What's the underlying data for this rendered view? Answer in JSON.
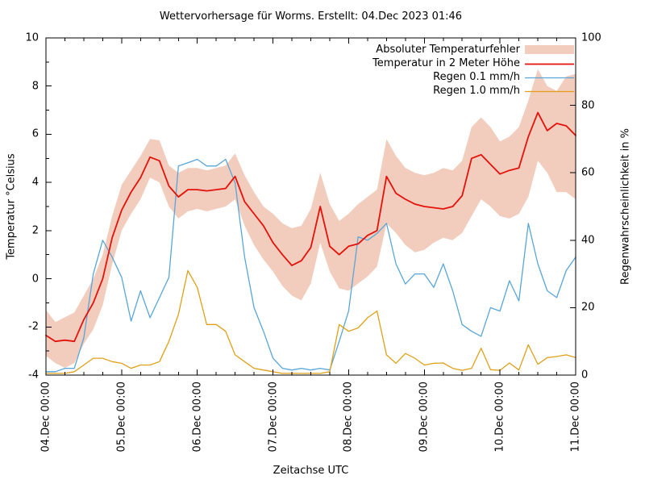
{
  "chart_data": {
    "type": "line",
    "title": "Wettervorhersage für Worms. Erstellt: 04.Dec 2023 01:46",
    "xlabel": "Zeitachse UTC",
    "ylabel_left": "Temperatur °Celsius",
    "ylabel_right": "Regenwahrscheinlichkeit in %",
    "grid": false,
    "legend_position": "top-right-inside",
    "x_tick_labels": [
      "04.Dec 00:00",
      "05.Dec 00:00",
      "06.Dec 00:00",
      "07.Dec 00:00",
      "08.Dec 00:00",
      "09.Dec 00:00",
      "10.Dec 00:00",
      "11.Dec 00:00"
    ],
    "x_minor_ticks_hours": 6,
    "step_hours": 3,
    "y_left": {
      "min": -4,
      "max": 10,
      "tick_step": 2,
      "minor_step": 1,
      "ticks": [
        10,
        8,
        6,
        4,
        2,
        0,
        -2,
        -4
      ]
    },
    "y_right": {
      "min": 0,
      "max": 100,
      "tick_step": 20,
      "ticks": [
        100,
        80,
        60,
        40,
        20,
        0
      ]
    },
    "legend": [
      {
        "label": "Absoluter Temperaturfehler",
        "series_key": "band",
        "swatch": "band"
      },
      {
        "label": "Temperatur in 2 Meter Höhe",
        "series_key": "temperature",
        "swatch": "line"
      },
      {
        "label": "Regen 0.1 mm/h",
        "series_key": "rain01",
        "swatch": "line"
      },
      {
        "label": "Regen 1.0 mm/h",
        "series_key": "rain10",
        "swatch": "line"
      }
    ],
    "series": {
      "band": {
        "name": "Absoluter Temperaturfehler",
        "axis": "left",
        "color": "#f2ccbc",
        "lower": [
          -3.2,
          -3.5,
          -3.7,
          -3.5,
          -2.7,
          -2.1,
          -1.1,
          0.6,
          2.0,
          2.7,
          3.3,
          4.2,
          4.0,
          3.0,
          2.5,
          2.8,
          2.9,
          2.8,
          2.9,
          3.0,
          3.3,
          2.2,
          1.4,
          0.8,
          0.3,
          -0.3,
          -0.7,
          -0.9,
          -0.2,
          1.5,
          0.3,
          -0.4,
          -0.5,
          -0.2,
          0.1,
          0.5,
          2.3,
          1.9,
          1.4,
          1.1,
          1.2,
          1.5,
          1.7,
          1.6,
          1.9,
          2.6,
          3.3,
          3.0,
          2.6,
          2.5,
          2.7,
          3.4,
          4.9,
          4.4,
          3.6,
          3.6,
          3.3
        ],
        "upper": [
          -1.3,
          -1.8,
          -1.6,
          -1.4,
          -0.7,
          0.0,
          1.0,
          2.6,
          3.9,
          4.5,
          5.1,
          5.8,
          5.75,
          4.7,
          4.4,
          4.6,
          4.6,
          4.5,
          4.6,
          4.7,
          5.2,
          4.3,
          3.6,
          3.0,
          2.7,
          2.3,
          2.1,
          2.2,
          2.9,
          4.4,
          3.1,
          2.4,
          2.7,
          3.1,
          3.4,
          3.7,
          5.8,
          5.1,
          4.6,
          4.4,
          4.3,
          4.4,
          4.6,
          4.5,
          4.9,
          6.3,
          6.7,
          6.3,
          5.7,
          5.9,
          6.3,
          7.4,
          8.7,
          8.0,
          7.8,
          8.4,
          8.5
        ]
      },
      "temperature": {
        "name": "Temperatur in 2 Meter Höhe",
        "axis": "left",
        "color": "#e3120b",
        "values": [
          -2.35,
          -2.6,
          -2.55,
          -2.6,
          -1.7,
          -1.0,
          0.0,
          1.7,
          2.85,
          3.6,
          4.2,
          5.05,
          4.9,
          3.85,
          3.4,
          3.7,
          3.7,
          3.65,
          3.7,
          3.75,
          4.25,
          3.2,
          2.7,
          2.2,
          1.5,
          1.0,
          0.55,
          0.75,
          1.3,
          3.0,
          1.35,
          1.0,
          1.35,
          1.45,
          1.8,
          2.0,
          4.25,
          3.55,
          3.3,
          3.1,
          3.0,
          2.95,
          2.9,
          3.0,
          3.45,
          5.0,
          5.15,
          4.75,
          4.35,
          4.5,
          4.6,
          5.9,
          6.9,
          6.15,
          6.45,
          6.35,
          5.95
        ]
      },
      "rain01": {
        "name": "Regen 0.1 mm/h",
        "axis": "right",
        "color": "#58a6d8",
        "values": [
          1,
          1,
          2,
          2,
          11,
          30,
          40,
          35,
          29,
          16,
          25,
          17,
          23,
          29,
          62,
          63,
          64,
          62,
          62,
          64,
          57,
          35,
          20,
          13,
          5,
          2,
          1.5,
          2,
          1.5,
          2,
          1.5,
          10,
          19,
          41,
          40,
          42,
          45,
          33,
          27,
          30,
          30,
          26,
          33,
          25,
          15,
          13,
          11.5,
          20,
          19,
          28,
          22,
          45,
          33,
          25,
          23,
          31,
          35
        ]
      },
      "rain10": {
        "name": "Regen 1.0 mm/h",
        "axis": "right",
        "color": "#dfa018",
        "values": [
          0.5,
          0.5,
          0.5,
          1,
          3,
          5,
          5,
          4,
          3.5,
          2,
          3,
          3,
          4,
          10,
          18,
          31,
          26,
          15,
          15,
          13,
          6,
          4,
          2,
          1.5,
          1,
          0.5,
          0.5,
          0.5,
          0.5,
          0.5,
          1,
          15,
          13,
          14,
          17,
          19,
          6,
          3.5,
          6.4,
          5,
          3,
          3.5,
          3.6,
          2,
          1.4,
          2,
          8,
          1.6,
          1.4,
          3.6,
          1.5,
          9,
          3.2,
          5.2,
          5.5,
          6,
          5.2
        ]
      }
    }
  }
}
